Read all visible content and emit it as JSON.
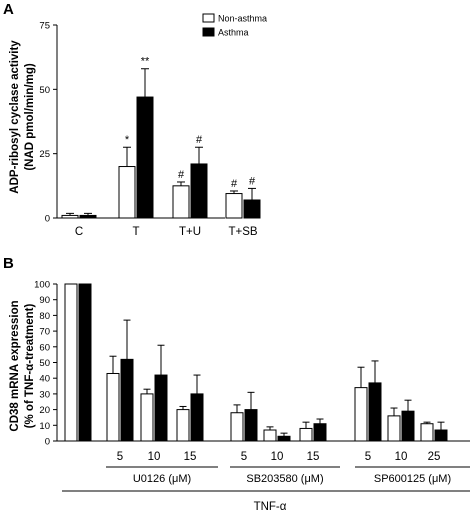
{
  "chart_data": [
    {
      "panel": "A",
      "type": "bar",
      "ylabel_line1": "ADP-ribosyl cyclase activity",
      "ylabel_line2": "(NAD pmol/min/mg)",
      "ylim": [
        0,
        75
      ],
      "yticks": [
        "0",
        "25",
        "50",
        "75"
      ],
      "categories": [
        "C",
        "T",
        "T+U",
        "T+SB"
      ],
      "series": [
        {
          "name": "Non-asthma",
          "color": "#ffffff",
          "values": [
            1.0,
            20.0,
            12.5,
            9.5
          ],
          "errors": [
            0.8,
            7.5,
            1.5,
            1.0
          ],
          "annotations": [
            "",
            "*",
            "#",
            "#"
          ]
        },
        {
          "name": "Asthma",
          "color": "#000000",
          "values": [
            1.0,
            47.0,
            21.0,
            7.0
          ],
          "errors": [
            0.8,
            11.0,
            6.5,
            4.5
          ],
          "annotations": [
            "",
            "**",
            "#",
            "#"
          ]
        }
      ],
      "legend_position": "top"
    },
    {
      "panel": "B",
      "type": "bar",
      "ylabel_line1": "CD38 mRNA expression",
      "ylabel_line2": "(% of TNF-α-treatment)",
      "ylim": [
        0,
        100
      ],
      "yticks": [
        "0",
        "10",
        "20",
        "30",
        "40",
        "50",
        "60",
        "70",
        "80",
        "90",
        "100"
      ],
      "categories": [
        "",
        "5",
        "10",
        "15",
        "5",
        "10",
        "15",
        "5",
        "10",
        "25"
      ],
      "groups": [
        {
          "label": "U0126 (μM)",
          "start": 1,
          "end": 3
        },
        {
          "label": "SB203580 (μM)",
          "start": 4,
          "end": 6
        },
        {
          "label": "SP600125 (μM)",
          "start": 7,
          "end": 9
        }
      ],
      "bottom_label": "TNF-α",
      "series": [
        {
          "name": "Non-asthma",
          "color": "#ffffff",
          "values": [
            100,
            43,
            30,
            20,
            18,
            7,
            8,
            34,
            16,
            11
          ],
          "errors": [
            0,
            11,
            3,
            2,
            5,
            2,
            4,
            13,
            5,
            1
          ]
        },
        {
          "name": "Asthma",
          "color": "#000000",
          "values": [
            100,
            52,
            42,
            30,
            20,
            3,
            11,
            37,
            19,
            7
          ],
          "errors": [
            0,
            25,
            19,
            12,
            11,
            2,
            3,
            14,
            7,
            5
          ]
        }
      ]
    }
  ]
}
